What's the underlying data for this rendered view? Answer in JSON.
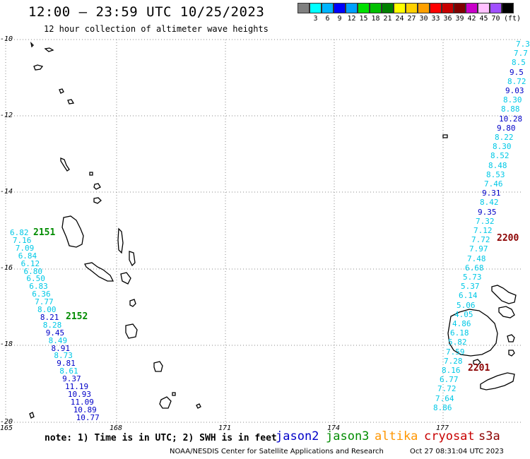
{
  "title": "12:00 – 23:59 UTC 10/25/2023",
  "subtitle": "12 hour collection of altimeter wave heights",
  "legend": {
    "colors": [
      "#808080",
      "#00ffff",
      "#00b4ff",
      "#0000ff",
      "#00a0ff",
      "#00e000",
      "#00c000",
      "#008000",
      "#ffff00",
      "#ffd000",
      "#ffa000",
      "#ff0000",
      "#c80000",
      "#800000",
      "#c800c8",
      "#ffc0ff",
      "#a050ff",
      "#000000"
    ],
    "labels": [
      "3",
      "6",
      "9",
      "12",
      "15",
      "18",
      "21",
      "24",
      "27",
      "30",
      "33",
      "36",
      "39",
      "42",
      "45",
      "70"
    ],
    "unit": "(ft)"
  },
  "axes": {
    "y_labels": [
      "-10",
      "-12",
      "-14",
      "-16",
      "-18",
      "-20"
    ],
    "x_labels": [
      "165",
      "168",
      "171",
      "174",
      "177"
    ]
  },
  "tracks": {
    "left": [
      {
        "v": "6.82",
        "c": "cyan"
      },
      {
        "v": "7.16",
        "c": "cyan"
      },
      {
        "v": "7.09",
        "c": "cyan"
      },
      {
        "v": "6.84",
        "c": "cyan"
      },
      {
        "v": "6.12",
        "c": "cyan"
      },
      {
        "v": "6.80",
        "c": "cyan"
      },
      {
        "v": "6.50",
        "c": "cyan"
      },
      {
        "v": "6.83",
        "c": "cyan"
      },
      {
        "v": "6.36",
        "c": "cyan"
      },
      {
        "v": "7.77",
        "c": "cyan"
      },
      {
        "v": "8.00",
        "c": "cyan"
      },
      {
        "v": "8.21",
        "c": "blue"
      },
      {
        "v": "8.28",
        "c": "cyan"
      },
      {
        "v": "9.45",
        "c": "blue"
      },
      {
        "v": "8.49",
        "c": "cyan"
      },
      {
        "v": "8.91",
        "c": "blue"
      },
      {
        "v": "8.73",
        "c": "cyan"
      },
      {
        "v": "9.81",
        "c": "blue"
      },
      {
        "v": "8.61",
        "c": "cyan"
      },
      {
        "v": "9.37",
        "c": "blue"
      },
      {
        "v": "11.19",
        "c": "blue"
      },
      {
        "v": "10.93",
        "c": "blue"
      },
      {
        "v": "11.09",
        "c": "blue"
      },
      {
        "v": "10.89",
        "c": "blue"
      },
      {
        "v": "10.77",
        "c": "blue"
      }
    ],
    "right": [
      {
        "v": "7.3",
        "c": "cyan"
      },
      {
        "v": "7.7",
        "c": "cyan"
      },
      {
        "v": "8.5",
        "c": "cyan"
      },
      {
        "v": "9.5",
        "c": "blue"
      },
      {
        "v": "8.72",
        "c": "cyan"
      },
      {
        "v": "9.03",
        "c": "blue"
      },
      {
        "v": "8.30",
        "c": "cyan"
      },
      {
        "v": "8.88",
        "c": "cyan"
      },
      {
        "v": "10.28",
        "c": "blue"
      },
      {
        "v": "9.80",
        "c": "blue"
      },
      {
        "v": "8.22",
        "c": "cyan"
      },
      {
        "v": "8.30",
        "c": "cyan"
      },
      {
        "v": "8.52",
        "c": "cyan"
      },
      {
        "v": "8.48",
        "c": "cyan"
      },
      {
        "v": "8.53",
        "c": "cyan"
      },
      {
        "v": "7.46",
        "c": "cyan"
      },
      {
        "v": "9.31",
        "c": "blue"
      },
      {
        "v": "8.42",
        "c": "cyan"
      },
      {
        "v": "9.35",
        "c": "blue"
      },
      {
        "v": "7.32",
        "c": "cyan"
      },
      {
        "v": "7.12",
        "c": "cyan"
      },
      {
        "v": "7.72",
        "c": "cyan"
      },
      {
        "v": "7.97",
        "c": "cyan"
      },
      {
        "v": "7.48",
        "c": "cyan"
      },
      {
        "v": "6.68",
        "c": "cyan"
      },
      {
        "v": "5.73",
        "c": "cyan"
      },
      {
        "v": "5.37",
        "c": "cyan"
      },
      {
        "v": "6.14",
        "c": "cyan"
      },
      {
        "v": "5.06",
        "c": "cyan"
      },
      {
        "v": "4.05",
        "c": "cyan"
      },
      {
        "v": "4.86",
        "c": "cyan"
      },
      {
        "v": "6.18",
        "c": "cyan"
      },
      {
        "v": "5.82",
        "c": "cyan"
      },
      {
        "v": "7.59",
        "c": "cyan"
      },
      {
        "v": "7.28",
        "c": "cyan"
      },
      {
        "v": "8.16",
        "c": "cyan"
      },
      {
        "v": "6.77",
        "c": "cyan"
      },
      {
        "v": "7.72",
        "c": "cyan"
      },
      {
        "v": "7.64",
        "c": "cyan"
      },
      {
        "v": "8.86",
        "c": "cyan"
      }
    ]
  },
  "passes": {
    "p2151": "2151",
    "p2152": "2152",
    "p2200": "2200",
    "p2201": "2201"
  },
  "note": "note:  1) Time is in UTC;  2) SWH is in feet",
  "satellites": {
    "jason2": "jason2",
    "jason3": "jason3",
    "altika": "altika",
    "cryosat": "cryosat",
    "s3a": "s3a"
  },
  "footer": {
    "left": "NOAA/NESDIS Center for Satellite Applications and Research",
    "right": "Oct 27 08:31:04 UTC 2023"
  }
}
